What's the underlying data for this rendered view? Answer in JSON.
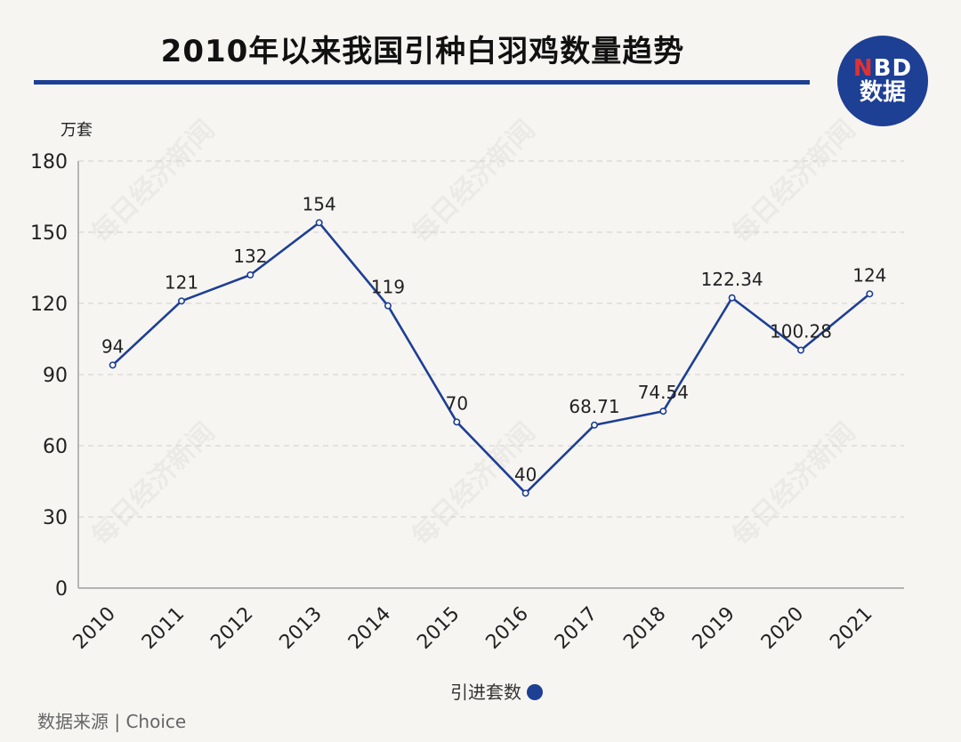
{
  "title": "2010年以来我国引种白羽鸡数量趋势",
  "logo": {
    "top": "NBD",
    "bottom": "数据"
  },
  "watermark": "每日经济新闻",
  "source": "数据来源 | Choice",
  "chart_data": {
    "type": "line",
    "unit_label": "万套",
    "categories": [
      "2010",
      "2011",
      "2012",
      "2013",
      "2014",
      "2015",
      "2016",
      "2017",
      "2018",
      "2019",
      "2020",
      "2021"
    ],
    "series": [
      {
        "name": "引进套数",
        "values": [
          94,
          121,
          132,
          154,
          119,
          70,
          40,
          68.71,
          74.54,
          122.34,
          100.28,
          124
        ],
        "labels": [
          "94",
          "121",
          "132",
          "154",
          "119",
          "70",
          "40",
          "68.71",
          "74.54",
          "122.34",
          "100.28",
          "124"
        ]
      }
    ],
    "ylim": [
      0,
      180
    ],
    "yticks": [
      "0",
      "30",
      "60",
      "90",
      "120",
      "150",
      "180"
    ],
    "grid": true,
    "legend": "bottom-center",
    "colors": {
      "line": "#1d3f94",
      "grid": "#cfcfcf",
      "axis": "#b5b5b5"
    }
  }
}
